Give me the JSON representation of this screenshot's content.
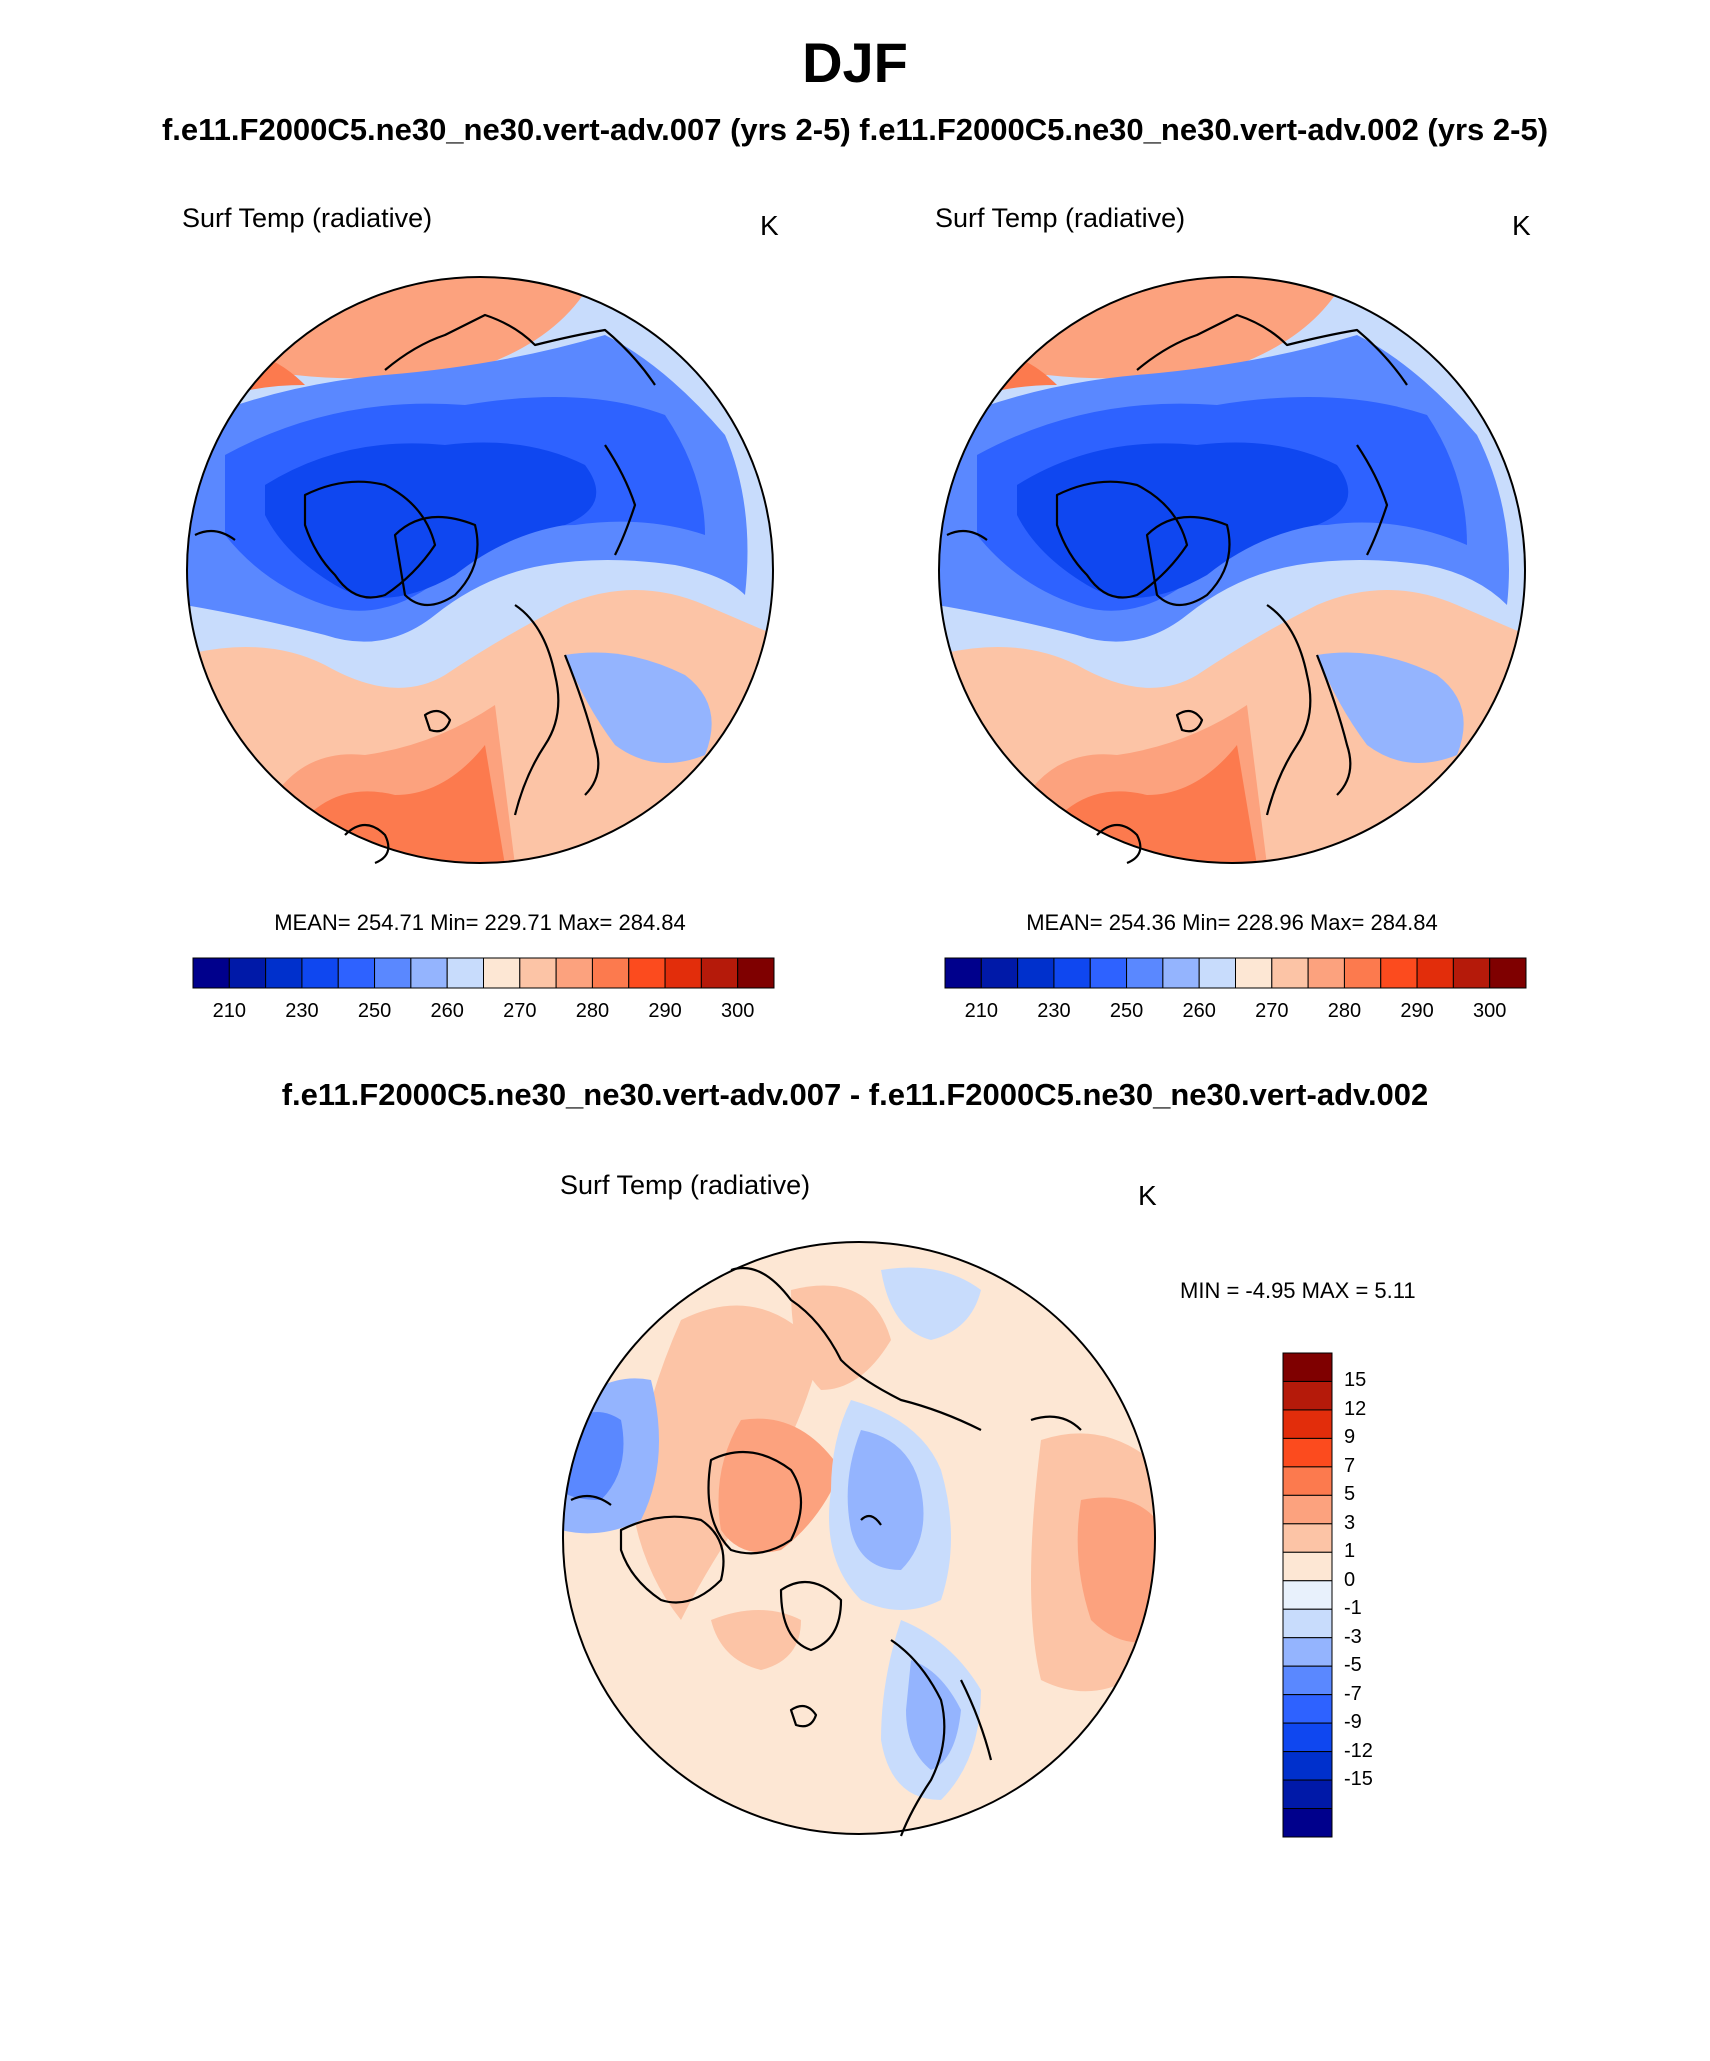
{
  "figure": {
    "season": "DJF",
    "case_titles": "f.e11.F2000C5.ne30_ne30.vert-adv.007 (yrs 2-5) f.e11.F2000C5.ne30_ne30.vert-adv.002 (yrs 2-5)",
    "diff_title": "f.e11.F2000C5.ne30_ne30.vert-adv.007 - f.e11.F2000C5.ne30_ne30.vert-adv.002"
  },
  "panels": [
    {
      "variable": "Surf Temp (radiative)",
      "units": "K",
      "stats": "MEAN= 254.71  Min= 229.71  Max= 284.84"
    },
    {
      "variable": "Surf Temp (radiative)",
      "units": "K",
      "stats": "MEAN= 254.36  Min= 228.96  Max= 284.84"
    },
    {
      "variable": "Surf Temp (radiative)",
      "units": "K",
      "stats": "MIN =  -4.95 MAX =   5.11"
    }
  ],
  "colorbars": {
    "absolute": {
      "colors": [
        "#00008c",
        "#0019a8",
        "#0030cc",
        "#0f47f0",
        "#2e62ff",
        "#5a88ff",
        "#94b4fe",
        "#c8dcfc",
        "#fde7d4",
        "#fcc4a6",
        "#fca27e",
        "#fc7a4e",
        "#fc4b1e",
        "#e22d0b",
        "#b51a0a",
        "#7f0000"
      ],
      "tick_labels": [
        "210",
        "230",
        "250",
        "260",
        "270",
        "280",
        "290",
        "300"
      ]
    },
    "difference": {
      "colors": [
        "#00008c",
        "#0019a8",
        "#0030cc",
        "#0f47f0",
        "#2e62ff",
        "#5a88ff",
        "#94b4fe",
        "#c8dcfc",
        "#e8f1fc",
        "#fde7d4",
        "#fcc4a6",
        "#fca27e",
        "#fc7a4e",
        "#fc4b1e",
        "#e22d0b",
        "#b51a0a",
        "#7f0000"
      ],
      "tick_labels": [
        "15",
        "12",
        "9",
        "7",
        "5",
        "3",
        "1",
        "0",
        "-1",
        "-3",
        "-5",
        "-7",
        "-9",
        "-12",
        "-15"
      ]
    }
  }
}
